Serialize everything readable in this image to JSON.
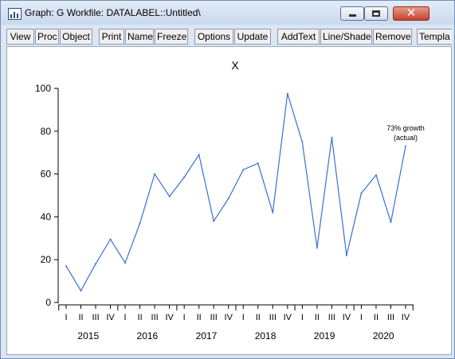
{
  "window": {
    "title": "Graph: G   Workfile: DATALABEL::Untitled\\",
    "minimize_glyph": "–",
    "maximize_glyph": "□",
    "close_glyph": "✕",
    "app_icon": "bar-chart-icon"
  },
  "toolbar": {
    "buttons": [
      "View",
      "Proc",
      "Object",
      "Print",
      "Name",
      "Freeze",
      "Options",
      "Update",
      "AddText",
      "Line/Shade",
      "Remove",
      "Templa"
    ]
  },
  "chart_data": {
    "type": "line",
    "title": "X",
    "xlabel": "",
    "ylabel": "",
    "ylim": [
      0,
      100
    ],
    "yticks": [
      0,
      20,
      40,
      60,
      80,
      100
    ],
    "quarter_labels": [
      "I",
      "II",
      "III",
      "IV"
    ],
    "years": [
      "2015",
      "2016",
      "2017",
      "2018",
      "2019",
      "2020"
    ],
    "series": [
      {
        "color": "#3a6fd8",
        "values": [
          17,
          5.5,
          18,
          29.5,
          18.5,
          37,
          60,
          49.5,
          58.5,
          69,
          38,
          48.5,
          62,
          65,
          42,
          97.5,
          75,
          25.5,
          77,
          22,
          51,
          59.5,
          37.5,
          73
        ]
      }
    ],
    "annotation": {
      "lines": [
        "73% growth",
        "(actual)"
      ],
      "point_index": 23
    },
    "grid": false
  }
}
